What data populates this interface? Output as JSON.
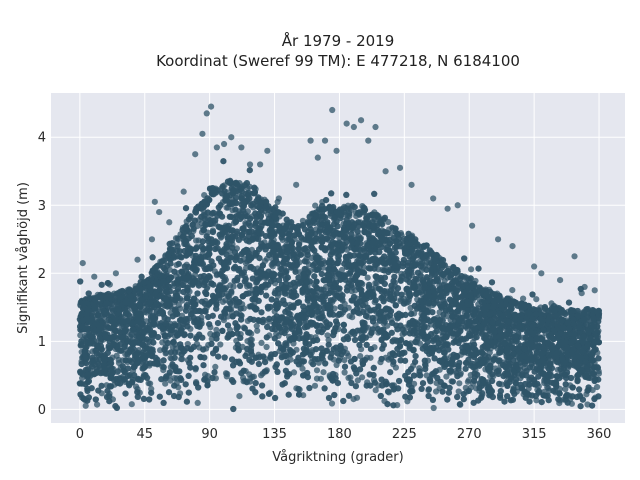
{
  "chart_data": {
    "type": "scatter",
    "title": "År 1979 - 2019",
    "subtitle": "Koordinat (Sweref 99 TM): E 477218, N 6184100",
    "xlabel": "Vågriktning (grader)",
    "ylabel": "Signifikant våghöjd (m)",
    "xlim": [
      -20,
      378
    ],
    "ylim": [
      -0.2,
      4.65
    ],
    "xticks": [
      0,
      45,
      90,
      135,
      180,
      225,
      270,
      315,
      360
    ],
    "yticks": [
      0,
      1,
      2,
      3,
      4
    ],
    "grid": true,
    "background": "#e5e7ef",
    "marker_color": "#2f5468",
    "marker_opacity": 0.75,
    "envelope": {
      "description_direction_deg": [
        0,
        15,
        30,
        45,
        60,
        75,
        90,
        105,
        120,
        135,
        150,
        165,
        180,
        195,
        210,
        225,
        240,
        255,
        270,
        285,
        300,
        315,
        330,
        345,
        360
      ],
      "dense_max_height_m": [
        1.6,
        1.7,
        1.75,
        1.9,
        2.3,
        2.8,
        3.25,
        3.4,
        3.3,
        2.95,
        2.7,
        2.95,
        3.0,
        3.0,
        2.85,
        2.65,
        2.4,
        2.15,
        1.95,
        1.75,
        1.6,
        1.5,
        1.5,
        1.45,
        1.5
      ]
    },
    "outliers": [
      {
        "x": 2,
        "y": 2.15
      },
      {
        "x": 10,
        "y": 1.95
      },
      {
        "x": 25,
        "y": 2.0
      },
      {
        "x": 40,
        "y": 2.2
      },
      {
        "x": 50,
        "y": 2.5
      },
      {
        "x": 52,
        "y": 3.05
      },
      {
        "x": 55,
        "y": 2.9
      },
      {
        "x": 62,
        "y": 2.75
      },
      {
        "x": 72,
        "y": 3.2
      },
      {
        "x": 80,
        "y": 3.75
      },
      {
        "x": 85,
        "y": 4.05
      },
      {
        "x": 88,
        "y": 4.35
      },
      {
        "x": 91,
        "y": 4.45
      },
      {
        "x": 95,
        "y": 3.85
      },
      {
        "x": 100,
        "y": 3.9
      },
      {
        "x": 105,
        "y": 4.0
      },
      {
        "x": 112,
        "y": 3.85
      },
      {
        "x": 118,
        "y": 3.6
      },
      {
        "x": 125,
        "y": 3.6
      },
      {
        "x": 130,
        "y": 3.8
      },
      {
        "x": 138,
        "y": 3.1
      },
      {
        "x": 150,
        "y": 3.3
      },
      {
        "x": 160,
        "y": 3.95
      },
      {
        "x": 165,
        "y": 3.7
      },
      {
        "x": 170,
        "y": 3.95
      },
      {
        "x": 175,
        "y": 4.4
      },
      {
        "x": 178,
        "y": 3.8
      },
      {
        "x": 185,
        "y": 4.2
      },
      {
        "x": 190,
        "y": 4.15
      },
      {
        "x": 195,
        "y": 4.25
      },
      {
        "x": 200,
        "y": 3.95
      },
      {
        "x": 205,
        "y": 4.15
      },
      {
        "x": 212,
        "y": 3.5
      },
      {
        "x": 222,
        "y": 3.55
      },
      {
        "x": 230,
        "y": 3.3
      },
      {
        "x": 245,
        "y": 3.1
      },
      {
        "x": 255,
        "y": 2.95
      },
      {
        "x": 262,
        "y": 3.0
      },
      {
        "x": 272,
        "y": 2.7
      },
      {
        "x": 290,
        "y": 2.5
      },
      {
        "x": 300,
        "y": 2.4
      },
      {
        "x": 315,
        "y": 2.1
      },
      {
        "x": 320,
        "y": 2.0
      },
      {
        "x": 333,
        "y": 1.9
      },
      {
        "x": 343,
        "y": 2.25
      },
      {
        "x": 350,
        "y": 1.8
      },
      {
        "x": 357,
        "y": 1.75
      }
    ]
  }
}
